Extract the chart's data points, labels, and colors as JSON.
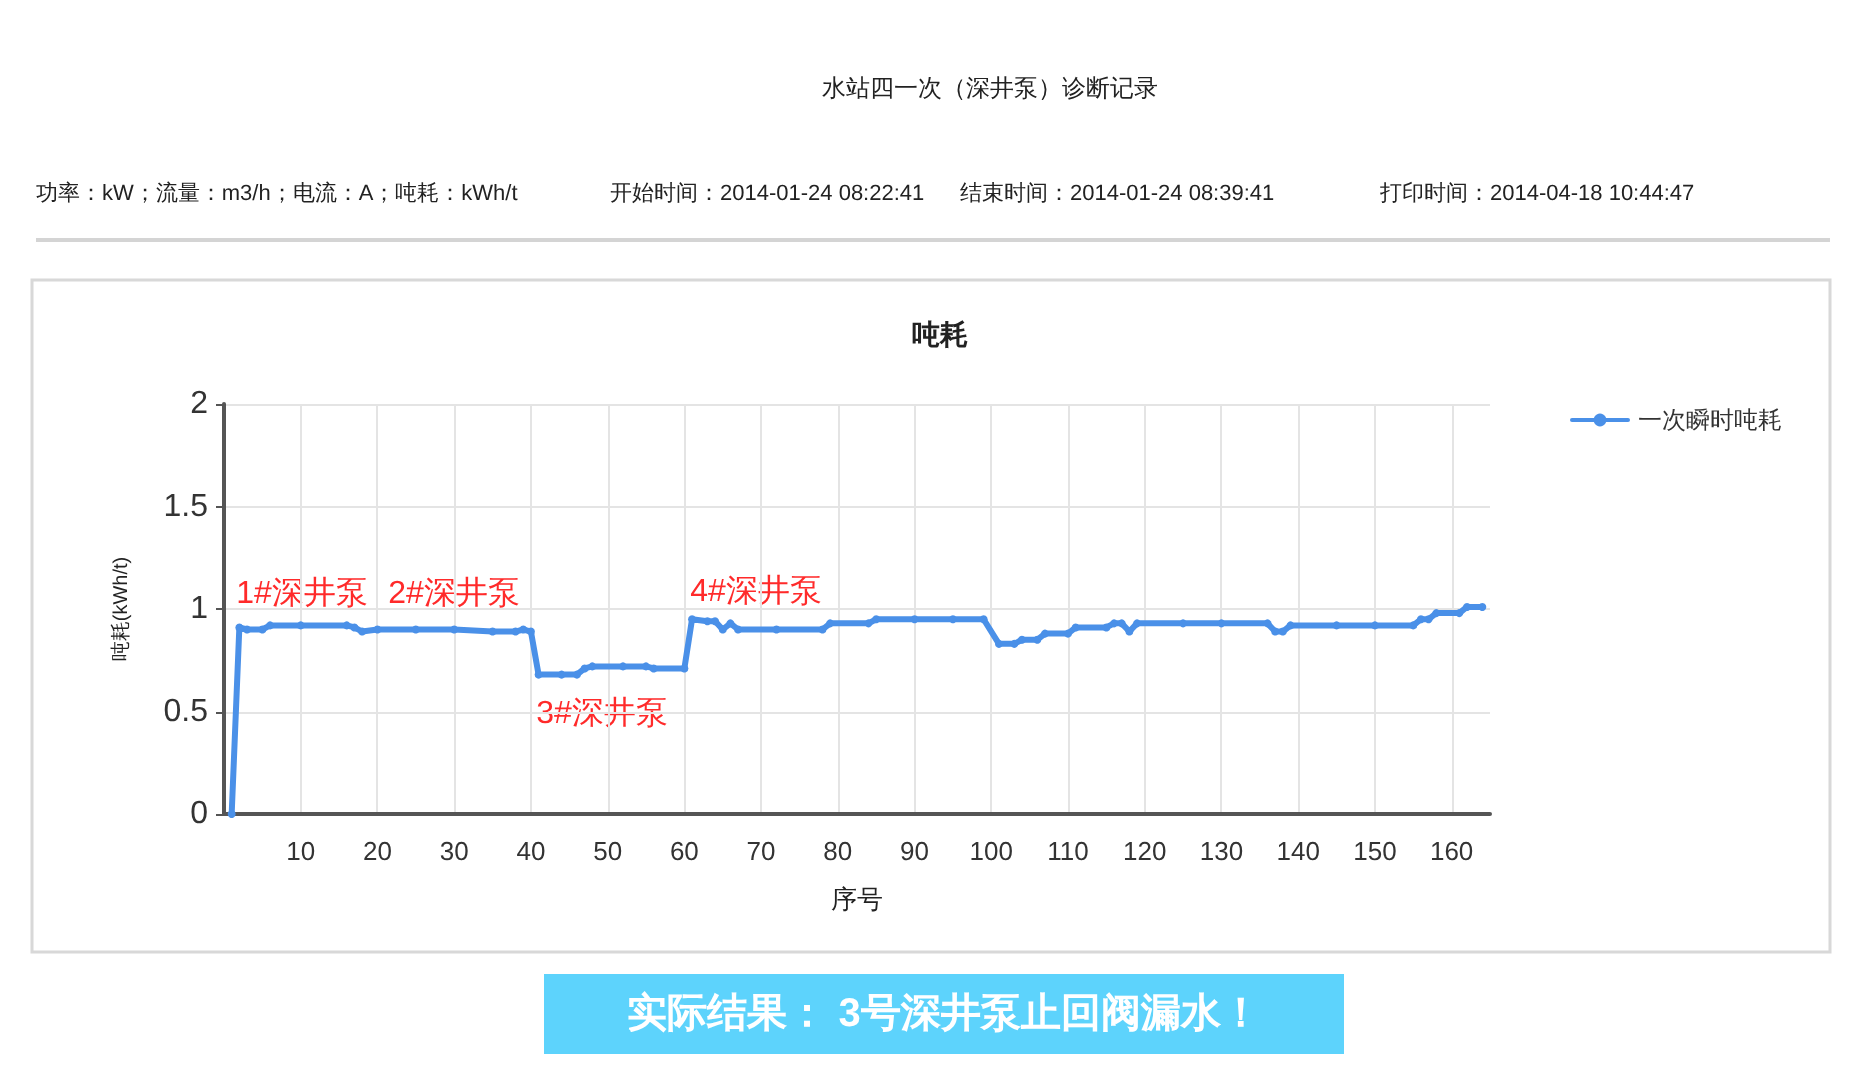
{
  "chart_data": {
    "type": "line",
    "title": "水站四一次（深井泵）诊断记录",
    "subtitle": "吨耗",
    "xlabel": "序号",
    "ylabel": "吨耗(kWh/t)",
    "x": [
      1,
      2,
      3,
      5,
      6,
      10,
      16,
      17,
      18,
      20,
      25,
      30,
      35,
      38,
      39,
      40,
      41,
      44,
      46,
      47,
      48,
      52,
      55,
      56,
      60,
      61,
      63,
      64,
      65,
      66,
      67,
      72,
      78,
      79,
      84,
      85,
      90,
      95,
      99,
      101,
      103,
      104,
      106,
      107,
      110,
      111,
      115,
      116,
      117,
      118,
      119,
      125,
      130,
      136,
      137,
      138,
      139,
      145,
      150,
      155,
      156,
      157,
      158,
      161,
      162,
      164
    ],
    "series": [
      {
        "name": "一次瞬时吨耗",
        "color": "#4a90e8",
        "values": [
          0,
          0.91,
          0.9,
          0.9,
          0.92,
          0.92,
          0.92,
          0.91,
          0.89,
          0.9,
          0.9,
          0.9,
          0.89,
          0.89,
          0.9,
          0.89,
          0.68,
          0.68,
          0.68,
          0.71,
          0.72,
          0.72,
          0.72,
          0.71,
          0.71,
          0.95,
          0.94,
          0.94,
          0.9,
          0.93,
          0.9,
          0.9,
          0.9,
          0.93,
          0.93,
          0.95,
          0.95,
          0.95,
          0.95,
          0.83,
          0.83,
          0.85,
          0.85,
          0.88,
          0.88,
          0.91,
          0.91,
          0.93,
          0.93,
          0.89,
          0.93,
          0.93,
          0.93,
          0.93,
          0.89,
          0.89,
          0.92,
          0.92,
          0.92,
          0.92,
          0.95,
          0.95,
          0.98,
          0.98,
          1.01,
          1.01
        ]
      }
    ],
    "xlim": [
      0,
      165
    ],
    "xticks": [
      10,
      20,
      30,
      40,
      50,
      60,
      70,
      80,
      90,
      100,
      110,
      120,
      130,
      140,
      150,
      160
    ],
    "ylim": [
      0,
      2
    ],
    "yticks": [
      0,
      0.5,
      1,
      1.5,
      2
    ],
    "grid": true,
    "legend": "top right",
    "marker": "circle",
    "line_style": "solid",
    "annotations": [
      "功率：kW；流量：m3/h；电流：A；吨耗：kWh/t",
      "开始时间：2014-01-24 08:22:41",
      "结束时间：2014-01-24 08:39:41",
      "打印时间：2014-04-18 10:44:47",
      "实际结果： 3号深井泵止回阀漏水！",
      "1#深井泵",
      "2#深井泵",
      "3#深井泵",
      "4#深井泵"
    ]
  }
}
